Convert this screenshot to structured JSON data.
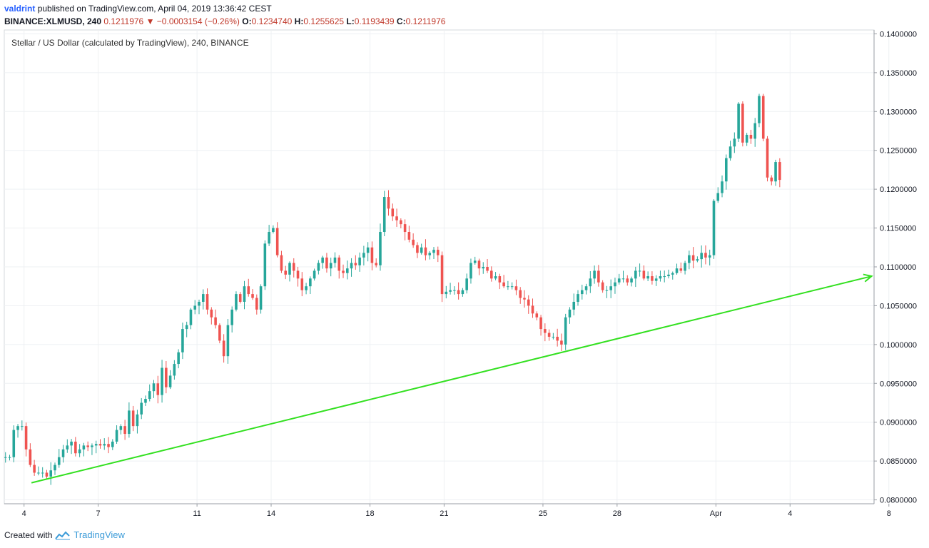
{
  "header": {
    "user": "valdrint",
    "published": "published on TradingView.com, April 04, 2019 13:36:42 CEST",
    "symbol": "BINANCE:XLMUSD, 240",
    "last": "0.1211976",
    "change": "−0.0003154 (−0.26%)",
    "o_label": "O:",
    "o_value": "0.1234740",
    "h_label": "H:",
    "h_value": "0.1255625",
    "l_label": "L:",
    "l_value": "0.1193439",
    "c_label": "C:",
    "c_value": "0.1211976"
  },
  "footer": {
    "created_with": "Created with",
    "brand": "TradingView"
  },
  "colors": {
    "up": "#26a69a",
    "down": "#ef5350",
    "trendline": "#33e020",
    "grid": "#eef0f3"
  },
  "chart_data": {
    "type": "candlestick",
    "title": "Stellar / US Dollar (calculated by TradingView), 240, BINANCE",
    "ylim": [
      0.0795,
      0.1405
    ],
    "xlim": [
      3.2,
      38.4
    ],
    "y_ticks": [
      "0.1400000",
      "0.1350000",
      "0.1300000",
      "0.1250000",
      "0.1200000",
      "0.1150000",
      "0.1100000",
      "0.1050000",
      "0.1000000",
      "0.0950000",
      "0.0900000",
      "0.0850000",
      "0.0800000"
    ],
    "y_tick_values": [
      0.14,
      0.135,
      0.13,
      0.125,
      0.12,
      0.115,
      0.11,
      0.105,
      0.1,
      0.095,
      0.09,
      0.085,
      0.08
    ],
    "x_ticks": [
      "4",
      "7",
      "11",
      "14",
      "18",
      "21",
      "25",
      "28",
      "Apr",
      "4",
      "8"
    ],
    "x_tick_values": [
      4,
      7,
      11,
      14,
      18,
      21,
      25,
      28,
      32,
      35,
      39
    ],
    "candles_per_day": 6,
    "first_day": 3.25,
    "closes": [
      0.0855,
      0.0855,
      0.089,
      0.0895,
      0.0895,
      0.0865,
      0.0845,
      0.0835,
      0.0835,
      0.0835,
      0.083,
      0.0838,
      0.0845,
      0.0855,
      0.0865,
      0.087,
      0.0875,
      0.086,
      0.0865,
      0.087,
      0.0868,
      0.087,
      0.0872,
      0.087,
      0.0872,
      0.0868,
      0.0875,
      0.089,
      0.0895,
      0.0885,
      0.0915,
      0.0895,
      0.091,
      0.0925,
      0.093,
      0.094,
      0.095,
      0.0935,
      0.097,
      0.0945,
      0.096,
      0.0975,
      0.099,
      0.102,
      0.1025,
      0.1045,
      0.105,
      0.1055,
      0.1065,
      0.1045,
      0.1035,
      0.1025,
      0.1005,
      0.0985,
      0.1025,
      0.1045,
      0.1065,
      0.1055,
      0.1075,
      0.1065,
      0.106,
      0.1045,
      0.1075,
      0.113,
      0.1145,
      0.115,
      0.1115,
      0.1095,
      0.109,
      0.1105,
      0.1095,
      0.1085,
      0.107,
      0.1075,
      0.1085,
      0.1095,
      0.1105,
      0.1112,
      0.1098,
      0.1105,
      0.1112,
      0.1095,
      0.1092,
      0.1098,
      0.1105,
      0.1102,
      0.1112,
      0.1118,
      0.1125,
      0.1105,
      0.1102,
      0.1145,
      0.119,
      0.1175,
      0.1165,
      0.116,
      0.1155,
      0.1145,
      0.1135,
      0.1128,
      0.1118,
      0.1125,
      0.1115,
      0.1118,
      0.1122,
      0.1115,
      0.1065,
      0.1068,
      0.107,
      0.107,
      0.1065,
      0.107,
      0.1085,
      0.1105,
      0.1108,
      0.1098,
      0.11,
      0.1095,
      0.1085,
      0.1088,
      0.108,
      0.1075,
      0.1075,
      0.1075,
      0.107,
      0.106,
      0.1058,
      0.105,
      0.104,
      0.1035,
      0.102,
      0.1015,
      0.101,
      0.101,
      0.1005,
      0.1,
      0.1035,
      0.1045,
      0.1055,
      0.1065,
      0.107,
      0.1075,
      0.1085,
      0.1095,
      0.108,
      0.107,
      0.107,
      0.1075,
      0.108,
      0.1085,
      0.1085,
      0.108,
      0.1085,
      0.1095,
      0.1095,
      0.1085,
      0.1088,
      0.1082,
      0.1085,
      0.1088,
      0.1088,
      0.109,
      0.1092,
      0.1098,
      0.1095,
      0.1105,
      0.1115,
      0.1108,
      0.111,
      0.1118,
      0.1112,
      0.1115,
      0.1185,
      0.1195,
      0.121,
      0.124,
      0.1255,
      0.1265,
      0.131,
      0.126,
      0.127,
      0.1265,
      0.1285,
      0.132,
      0.1265,
      0.1215,
      0.121,
      0.1235,
      0.1212
    ]
  }
}
